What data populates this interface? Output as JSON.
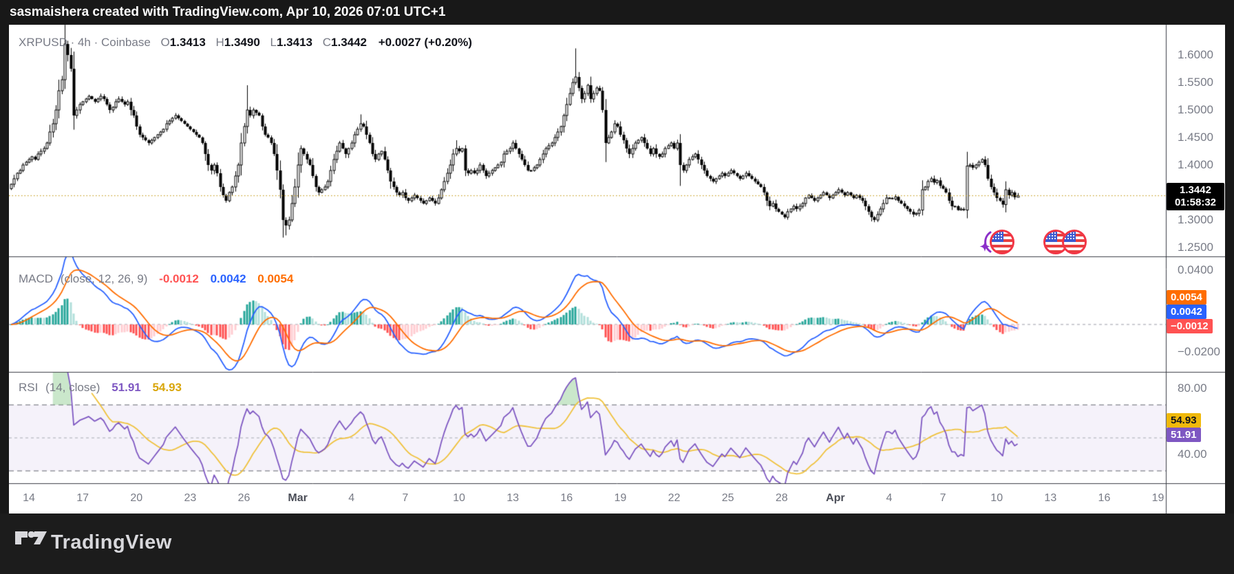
{
  "topbar": {
    "attribution": "sasmaishera created with TradingView.com, Apr 10, 2026 07:01 UTC+1"
  },
  "symbol_legend": {
    "title": "XRPUSD · 4h · Coinbase",
    "o_label": "O",
    "o": "1.3413",
    "h_label": "H",
    "h": "1.3490",
    "l_label": "L",
    "l": "1.3413",
    "c_label": "C",
    "c": "1.3442",
    "change": "+0.0027 (+0.20%)"
  },
  "price_pane": {
    "ticks": [
      {
        "label": "1.6000",
        "value": 1.6
      },
      {
        "label": "1.5500",
        "value": 1.55
      },
      {
        "label": "1.5000",
        "value": 1.5
      },
      {
        "label": "1.4500",
        "value": 1.45
      },
      {
        "label": "1.4000",
        "value": 1.4
      },
      {
        "label": "1.3000",
        "value": 1.3
      },
      {
        "label": "1.2500",
        "value": 1.25
      }
    ],
    "last_price_badge": {
      "price": "1.3442",
      "countdown": "01:58:32",
      "value": 1.3442
    },
    "dotted_line_value": 1.3442,
    "event_icons": [
      "sparkle-us-flag",
      "us-flag",
      "us-flag"
    ]
  },
  "macd_pane": {
    "legend": {
      "title": "MACD",
      "params": "(close, 12, 26, 9)",
      "hist": "-0.0012",
      "macd": "0.0042",
      "signal": "0.0054"
    },
    "ticks": [
      {
        "label": "0.0400",
        "value": 0.04
      },
      {
        "label": "−0.0200",
        "value": -0.02
      }
    ],
    "badges": [
      {
        "label": "0.0054",
        "value": 0.0054,
        "bg": "#FF6D00",
        "fg": "#ffffff"
      },
      {
        "label": "0.0042",
        "value": 0.0042,
        "bg": "#2962FF",
        "fg": "#ffffff"
      },
      {
        "label": "−0.0012",
        "value": -0.0012,
        "bg": "#FF5252",
        "fg": "#ffffff"
      }
    ]
  },
  "rsi_pane": {
    "legend": {
      "title": "RSI",
      "params": "(14, close)",
      "value": "51.91",
      "ma": "54.93"
    },
    "ticks": [
      {
        "label": "80.00",
        "value": 80
      },
      {
        "label": "40.00",
        "value": 40
      }
    ],
    "badges": [
      {
        "label": "54.93",
        "value": 54.93,
        "bg": "#F0B90B",
        "fg": "#11131a"
      },
      {
        "label": "51.91",
        "value": 51.91,
        "bg": "#7E57C2",
        "fg": "#ffffff"
      }
    ],
    "levels": {
      "upper": 70,
      "middle": 50,
      "lower": 30
    }
  },
  "time_axis": {
    "labels": [
      {
        "text": "14",
        "d": 1
      },
      {
        "text": "17",
        "d": 4
      },
      {
        "text": "20",
        "d": 7
      },
      {
        "text": "23",
        "d": 10
      },
      {
        "text": "26",
        "d": 13
      },
      {
        "text": "Mar",
        "d": 16,
        "major": true
      },
      {
        "text": "4",
        "d": 19
      },
      {
        "text": "7",
        "d": 22
      },
      {
        "text": "10",
        "d": 25
      },
      {
        "text": "13",
        "d": 28
      },
      {
        "text": "16",
        "d": 31
      },
      {
        "text": "19",
        "d": 34
      },
      {
        "text": "22",
        "d": 37
      },
      {
        "text": "25",
        "d": 40
      },
      {
        "text": "28",
        "d": 43
      },
      {
        "text": "Apr",
        "d": 46,
        "major": true
      },
      {
        "text": "4",
        "d": 49
      },
      {
        "text": "7",
        "d": 52
      },
      {
        "text": "10",
        "d": 55
      },
      {
        "text": "13",
        "d": 58
      },
      {
        "text": "16",
        "d": 61
      },
      {
        "text": "19",
        "d": 64
      }
    ]
  },
  "footer": {
    "brand": "TradingView"
  },
  "colors": {
    "candle_up_fill": "#ffffff",
    "candle_border": "#000000",
    "macd_line": "#2962FF",
    "signal_line": "#FF6D00",
    "hist_up": "#26A69A",
    "hist_up_weak": "#B2DFDB",
    "hist_down": "#FF5252",
    "hist_down_weak": "#FFCDD2",
    "rsi_line": "#7E57C2",
    "rsi_ma_line": "#F0C23C",
    "rsi_band_fill": "rgba(126,87,194,0.08)",
    "rsi_overbought_fill": "rgba(102,187,106,0.35)",
    "price_dotted_line": "#C9A227",
    "separator": "#3a3d45",
    "tick_text": "#787b86",
    "flag_ring": "#F23645",
    "flag_blue": "#3C58D0",
    "sparkle": "#8B2FC9"
  },
  "chart_data": {
    "type": "candlestick",
    "symbol": "XRPUSD",
    "interval": "4h",
    "exchange": "Coinbase",
    "title": "XRPUSD 4h Coinbase with MACD(12,26,9) and RSI(14)",
    "start": "Feb 13",
    "end": "Apr 10",
    "candles_per_day": 6,
    "price_axis_range": [
      1.235,
      1.655
    ],
    "closes": [
      1.365,
      1.375,
      1.385,
      1.39,
      1.4,
      1.405,
      1.41,
      1.415,
      1.41,
      1.42,
      1.425,
      1.43,
      1.44,
      1.46,
      1.475,
      1.5,
      1.535,
      1.555,
      1.62,
      1.6,
      1.575,
      1.49,
      1.5,
      1.51,
      1.515,
      1.52,
      1.525,
      1.52,
      1.515,
      1.52,
      1.525,
      1.52,
      1.51,
      1.5,
      1.505,
      1.515,
      1.52,
      1.515,
      1.51,
      1.515,
      1.5,
      1.49,
      1.47,
      1.455,
      1.45,
      1.445,
      1.44,
      1.445,
      1.45,
      1.455,
      1.46,
      1.465,
      1.475,
      1.48,
      1.485,
      1.49,
      1.485,
      1.48,
      1.475,
      1.47,
      1.465,
      1.46,
      1.455,
      1.45,
      1.44,
      1.42,
      1.4,
      1.39,
      1.4,
      1.385,
      1.36,
      1.345,
      1.335,
      1.35,
      1.36,
      1.38,
      1.4,
      1.44,
      1.47,
      1.5,
      1.49,
      1.5,
      1.495,
      1.49,
      1.47,
      1.455,
      1.45,
      1.44,
      1.42,
      1.39,
      1.355,
      1.3,
      1.29,
      1.3,
      1.33,
      1.36,
      1.4,
      1.43,
      1.42,
      1.41,
      1.4,
      1.38,
      1.36,
      1.35,
      1.355,
      1.36,
      1.37,
      1.39,
      1.41,
      1.425,
      1.44,
      1.43,
      1.42,
      1.43,
      1.44,
      1.455,
      1.465,
      1.475,
      1.47,
      1.455,
      1.44,
      1.42,
      1.41,
      1.42,
      1.425,
      1.41,
      1.39,
      1.37,
      1.36,
      1.35,
      1.345,
      1.35,
      1.34,
      1.335,
      1.34,
      1.345,
      1.34,
      1.335,
      1.33,
      1.335,
      1.34,
      1.335,
      1.33,
      1.34,
      1.355,
      1.37,
      1.385,
      1.4,
      1.42,
      1.43,
      1.425,
      1.43,
      1.39,
      1.385,
      1.39,
      1.385,
      1.39,
      1.4,
      1.39,
      1.38,
      1.385,
      1.39,
      1.395,
      1.4,
      1.405,
      1.42,
      1.425,
      1.43,
      1.44,
      1.43,
      1.42,
      1.41,
      1.4,
      1.39,
      1.39,
      1.395,
      1.4,
      1.41,
      1.42,
      1.43,
      1.435,
      1.44,
      1.45,
      1.46,
      1.47,
      1.49,
      1.51,
      1.53,
      1.55,
      1.56,
      1.54,
      1.52,
      1.53,
      1.545,
      1.52,
      1.53,
      1.54,
      1.535,
      1.5,
      1.44,
      1.45,
      1.46,
      1.475,
      1.47,
      1.455,
      1.445,
      1.43,
      1.42,
      1.43,
      1.44,
      1.445,
      1.45,
      1.44,
      1.43,
      1.42,
      1.43,
      1.42,
      1.415,
      1.42,
      1.43,
      1.435,
      1.44,
      1.43,
      1.44,
      1.4,
      1.39,
      1.4,
      1.41,
      1.415,
      1.42,
      1.41,
      1.4,
      1.39,
      1.38,
      1.375,
      1.37,
      1.375,
      1.38,
      1.385,
      1.38,
      1.385,
      1.39,
      1.385,
      1.38,
      1.375,
      1.38,
      1.385,
      1.38,
      1.375,
      1.37,
      1.365,
      1.36,
      1.35,
      1.335,
      1.325,
      1.33,
      1.32,
      1.315,
      1.31,
      1.305,
      1.315,
      1.32,
      1.325,
      1.32,
      1.325,
      1.33,
      1.34,
      1.345,
      1.34,
      1.335,
      1.34,
      1.345,
      1.35,
      1.345,
      1.34,
      1.345,
      1.35,
      1.355,
      1.35,
      1.345,
      1.35,
      1.345,
      1.34,
      1.345,
      1.34,
      1.335,
      1.325,
      1.315,
      1.305,
      1.3,
      1.31,
      1.32,
      1.33,
      1.34,
      1.34,
      1.338,
      1.342,
      1.335,
      1.33,
      1.325,
      1.32,
      1.315,
      1.31,
      1.312,
      1.318,
      1.355,
      1.36,
      1.37,
      1.375,
      1.368,
      1.372,
      1.362,
      1.357,
      1.35,
      1.335,
      1.325,
      1.325,
      1.318,
      1.32,
      1.318,
      1.398,
      1.4,
      1.395,
      1.4,
      1.405,
      1.41,
      1.4,
      1.375,
      1.36,
      1.35,
      1.34,
      1.335,
      1.328,
      1.355,
      1.345,
      1.35,
      1.3413,
      1.3442
    ],
    "wick_overrides": {
      "18": {
        "h": 1.668
      },
      "79": {
        "h": 1.545
      },
      "91": {
        "l": 1.268
      },
      "92": {
        "l": 1.272
      },
      "117": {
        "h": 1.492
      },
      "149": {
        "h": 1.445
      },
      "189": {
        "h": 1.612
      },
      "224": {
        "h": 1.456,
        "l": 1.362
      },
      "320": {
        "h": 1.424
      },
      "337": {
        "h": 1.349,
        "l": 1.3413
      }
    },
    "indicators": [
      {
        "type": "MACD",
        "source": "close",
        "fast": 12,
        "slow": 26,
        "signal": 9,
        "last_hist": -0.0012,
        "last_macd": 0.0042,
        "last_signal": 0.0054,
        "axis_range": [
          -0.035,
          0.05
        ]
      },
      {
        "type": "RSI",
        "source": "close",
        "length": 14,
        "ma_length": 14,
        "last_rsi": 51.91,
        "last_ma": 54.93,
        "bands": [
          70,
          50,
          30
        ],
        "axis_range": [
          10,
          95
        ]
      }
    ]
  }
}
